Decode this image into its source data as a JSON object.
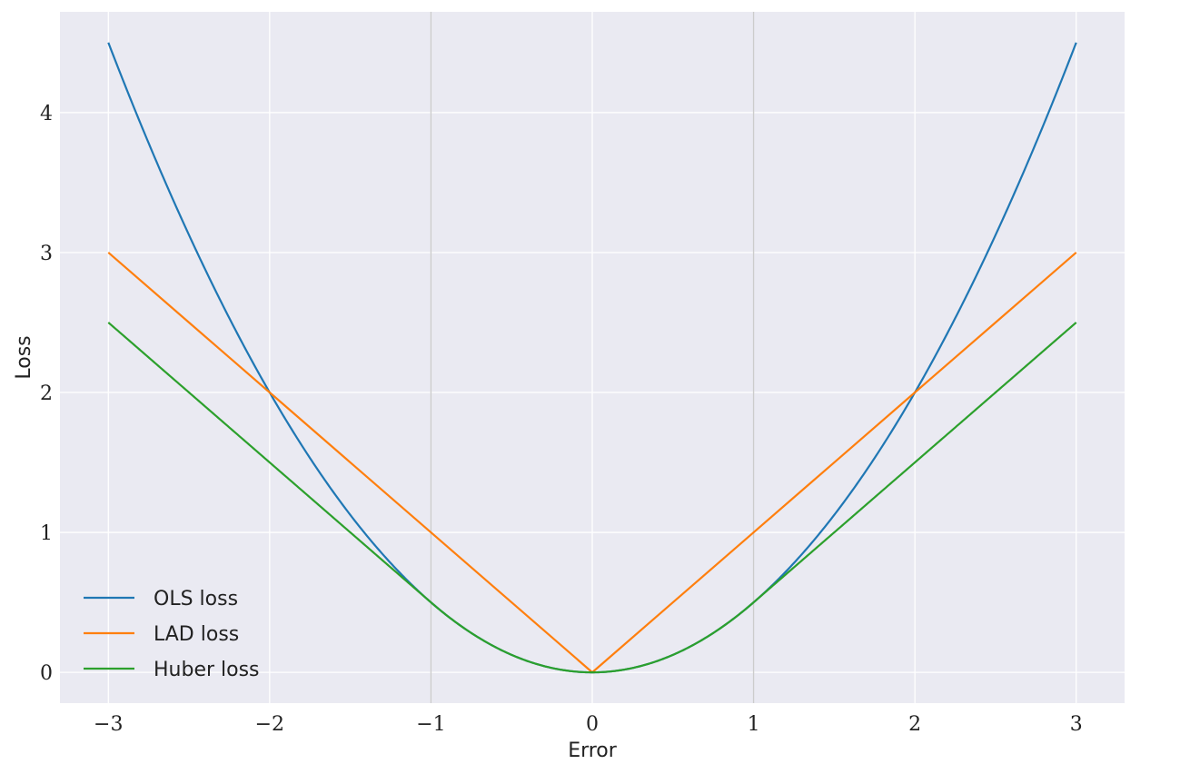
{
  "chart_data": {
    "type": "line",
    "xlabel": "Error",
    "ylabel": "Loss",
    "xlim": [
      -3.3,
      3.3
    ],
    "ylim": [
      -0.22,
      4.72
    ],
    "xticks": [
      -3,
      -2,
      -1,
      0,
      1,
      2,
      3
    ],
    "xtick_labels": [
      "−3",
      "−2",
      "−1",
      "0",
      "1",
      "2",
      "3"
    ],
    "yticks": [
      0,
      1,
      2,
      3,
      4
    ],
    "ytick_labels": [
      "0",
      "1",
      "2",
      "3",
      "4"
    ],
    "vertical_reference_lines": [
      -1,
      1
    ],
    "grid": true,
    "legend_position": "lower-left",
    "x": [
      -3.0,
      -2.5,
      -2.0,
      -1.5,
      -1.0,
      -0.5,
      0.0,
      0.5,
      1.0,
      1.5,
      2.0,
      2.5,
      3.0
    ],
    "series": [
      {
        "name": "OLS loss",
        "color": "#1f77b4",
        "values": [
          4.5,
          3.125,
          2.0,
          1.125,
          0.5,
          0.125,
          0.0,
          0.125,
          0.5,
          1.125,
          2.0,
          3.125,
          4.5
        ]
      },
      {
        "name": "LAD loss",
        "color": "#ff7f0e",
        "values": [
          3.0,
          2.5,
          2.0,
          1.5,
          1.0,
          0.5,
          0.0,
          0.5,
          1.0,
          1.5,
          2.0,
          2.5,
          3.0
        ]
      },
      {
        "name": "Huber loss",
        "color": "#2ca02c",
        "values": [
          2.5,
          2.0,
          1.5,
          1.0,
          0.5,
          0.125,
          0.0,
          0.125,
          0.5,
          1.0,
          1.5,
          2.0,
          2.5
        ]
      }
    ],
    "colors": {
      "plot_background": "#eaeaf2",
      "grid": "#ffffff",
      "reference_line": "#cccccc"
    }
  }
}
